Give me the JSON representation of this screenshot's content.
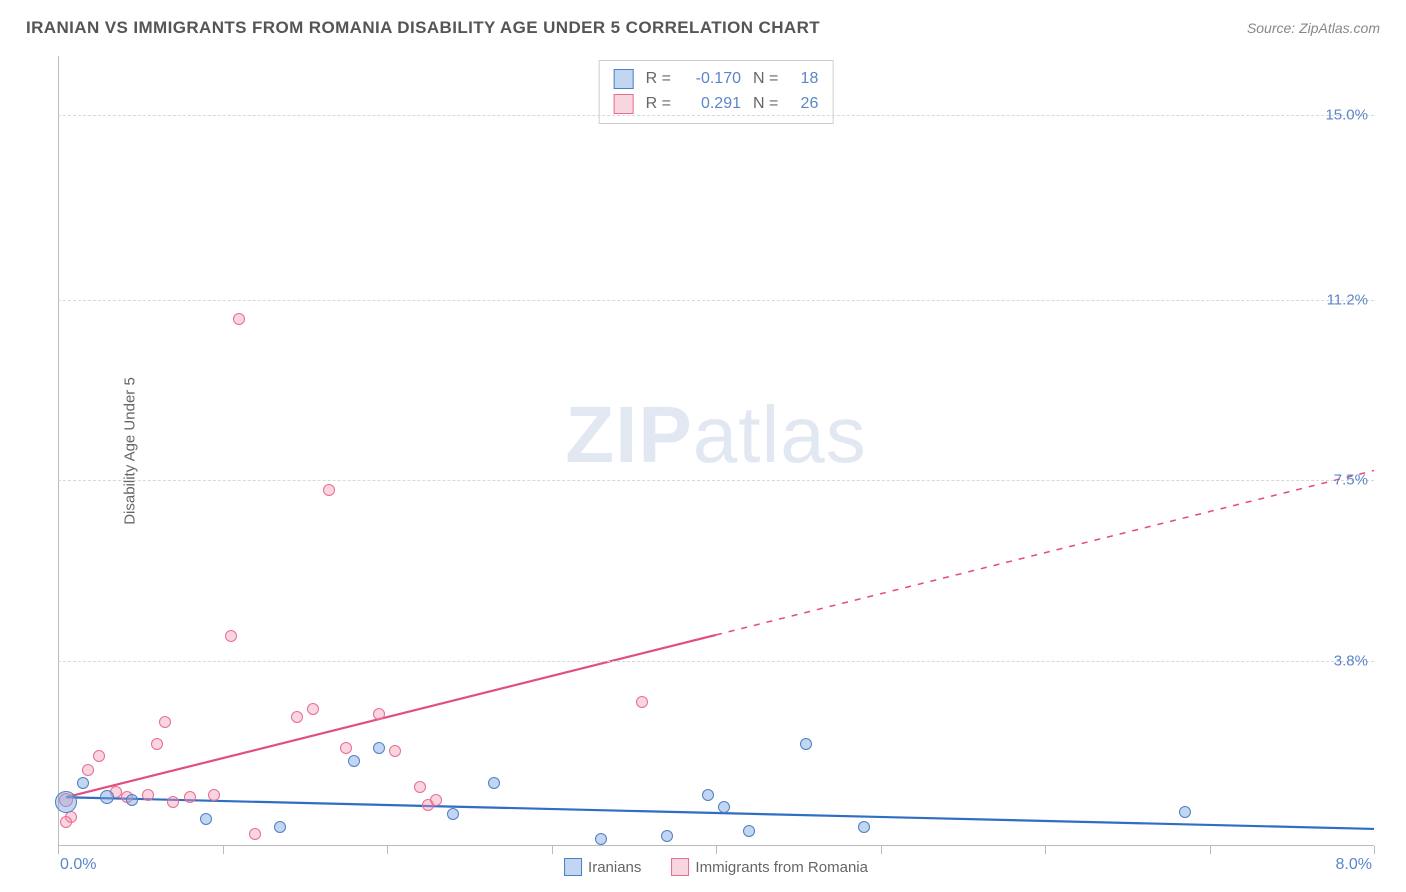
{
  "header": {
    "title": "IRANIAN VS IMMIGRANTS FROM ROMANIA DISABILITY AGE UNDER 5 CORRELATION CHART",
    "source": "Source: ZipAtlas.com"
  },
  "chart": {
    "type": "scatter",
    "ylabel": "Disability Age Under 5",
    "xlim": [
      0,
      8.0
    ],
    "ylim": [
      0,
      16.2
    ],
    "xmax_label": "8.0%",
    "origin_label": "0.0%",
    "ytick_positions": [
      3.8,
      7.5,
      11.2,
      15.0
    ],
    "ytick_labels": [
      "3.8%",
      "7.5%",
      "11.2%",
      "15.0%"
    ],
    "xtick_positions": [
      0,
      1,
      2,
      3,
      4,
      5,
      6,
      7,
      8
    ],
    "background_color": "#ffffff",
    "grid_color": "#d8d8d8",
    "axis_color": "#bbbbbb",
    "tick_label_color": "#5b86c9",
    "watermark": {
      "text_a": "ZIP",
      "text_b": "atlas"
    },
    "series": {
      "blue": {
        "label": "Iranians",
        "fill": "rgba(120,165,225,0.45)",
        "stroke": "#4b7fc6",
        "marker_size": 18,
        "trend": {
          "x1": 0.05,
          "y1": 1.0,
          "x2": 8.0,
          "y2": 0.35,
          "solid_to_x": 8.0,
          "color": "#2f6ec2",
          "width": 2.2
        },
        "points": [
          {
            "x": 0.05,
            "y": 0.9,
            "r": 22
          },
          {
            "x": 0.3,
            "y": 1.0,
            "r": 14
          },
          {
            "x": 0.45,
            "y": 0.95,
            "r": 12
          },
          {
            "x": 0.9,
            "y": 0.55,
            "r": 12
          },
          {
            "x": 1.35,
            "y": 0.38,
            "r": 12
          },
          {
            "x": 1.8,
            "y": 1.75,
            "r": 12
          },
          {
            "x": 1.95,
            "y": 2.0,
            "r": 12
          },
          {
            "x": 2.4,
            "y": 0.65,
            "r": 12
          },
          {
            "x": 2.65,
            "y": 1.3,
            "r": 12
          },
          {
            "x": 3.3,
            "y": 0.15,
            "r": 12
          },
          {
            "x": 3.7,
            "y": 0.2,
            "r": 12
          },
          {
            "x": 3.95,
            "y": 1.05,
            "r": 12
          },
          {
            "x": 4.2,
            "y": 0.3,
            "r": 12
          },
          {
            "x": 4.55,
            "y": 2.1,
            "r": 12
          },
          {
            "x": 4.9,
            "y": 0.4,
            "r": 12
          },
          {
            "x": 6.85,
            "y": 0.7,
            "r": 12
          },
          {
            "x": 4.05,
            "y": 0.8,
            "r": 12
          },
          {
            "x": 0.15,
            "y": 1.3,
            "r": 12
          }
        ]
      },
      "pink": {
        "label": "Immigrants from Romania",
        "fill": "rgba(240,150,175,0.40)",
        "stroke": "#e86d92",
        "marker_size": 18,
        "trend": {
          "x1": 0.05,
          "y1": 1.0,
          "x2": 8.0,
          "y2": 7.7,
          "solid_to_x": 4.0,
          "color": "#e24e7e",
          "width": 2.2
        },
        "points": [
          {
            "x": 0.05,
            "y": 0.95,
            "r": 14
          },
          {
            "x": 0.08,
            "y": 0.6,
            "r": 12
          },
          {
            "x": 0.18,
            "y": 1.55,
            "r": 12
          },
          {
            "x": 0.25,
            "y": 1.85,
            "r": 12
          },
          {
            "x": 0.35,
            "y": 1.1,
            "r": 12
          },
          {
            "x": 0.42,
            "y": 1.0,
            "r": 12
          },
          {
            "x": 0.55,
            "y": 1.05,
            "r": 12
          },
          {
            "x": 0.6,
            "y": 2.1,
            "r": 12
          },
          {
            "x": 0.65,
            "y": 2.55,
            "r": 12
          },
          {
            "x": 0.7,
            "y": 0.9,
            "r": 12
          },
          {
            "x": 0.8,
            "y": 1.0,
            "r": 12
          },
          {
            "x": 0.95,
            "y": 1.05,
            "r": 12
          },
          {
            "x": 1.05,
            "y": 4.3,
            "r": 12
          },
          {
            "x": 1.1,
            "y": 10.8,
            "r": 12
          },
          {
            "x": 1.2,
            "y": 0.25,
            "r": 12
          },
          {
            "x": 1.45,
            "y": 2.65,
            "r": 12
          },
          {
            "x": 1.55,
            "y": 2.8,
            "r": 12
          },
          {
            "x": 1.65,
            "y": 7.3,
            "r": 12
          },
          {
            "x": 1.75,
            "y": 2.0,
            "r": 12
          },
          {
            "x": 1.95,
            "y": 2.7,
            "r": 12
          },
          {
            "x": 2.05,
            "y": 1.95,
            "r": 12
          },
          {
            "x": 2.2,
            "y": 1.2,
            "r": 12
          },
          {
            "x": 2.25,
            "y": 0.85,
            "r": 12
          },
          {
            "x": 2.3,
            "y": 0.95,
            "r": 12
          },
          {
            "x": 3.55,
            "y": 2.95,
            "r": 12
          },
          {
            "x": 0.05,
            "y": 0.5,
            "r": 12
          }
        ]
      }
    },
    "stats_box": {
      "rows": [
        {
          "swatch_fill": "rgba(120,165,225,0.45)",
          "swatch_stroke": "#4b7fc6",
          "r": "-0.170",
          "n": "18"
        },
        {
          "swatch_fill": "rgba(240,150,175,0.40)",
          "swatch_stroke": "#e86d92",
          "r": "0.291",
          "n": "26"
        }
      ],
      "labels": {
        "R": "R =",
        "N": "N ="
      }
    },
    "bottom_legend": [
      {
        "swatch_fill": "rgba(120,165,225,0.45)",
        "swatch_stroke": "#4b7fc6",
        "label": "Iranians"
      },
      {
        "swatch_fill": "rgba(240,150,175,0.40)",
        "swatch_stroke": "#e86d92",
        "label": "Immigrants from Romania"
      }
    ]
  }
}
